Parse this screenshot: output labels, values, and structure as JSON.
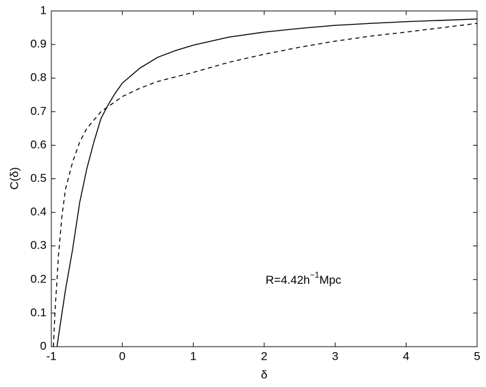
{
  "chart_data": {
    "type": "line",
    "x_label": "δ",
    "y_label": "C(δ)",
    "annotation": [
      "R=4.42h",
      "−1",
      "Mpc"
    ],
    "xlim": [
      -1,
      5
    ],
    "ylim": [
      0,
      1
    ],
    "xticks": [
      -1,
      0,
      1,
      2,
      3,
      4,
      5
    ],
    "yticks": [
      0,
      0.1,
      0.2,
      0.3,
      0.4,
      0.5,
      0.6,
      0.7,
      0.8,
      0.9,
      1
    ],
    "grid": false,
    "series": [
      {
        "color": "#000000",
        "dash": "solid",
        "x": [
          -0.92,
          -0.9,
          -0.85,
          -0.8,
          -0.75,
          -0.7,
          -0.6,
          -0.5,
          -0.4,
          -0.3,
          -0.2,
          -0.1,
          0,
          0.25,
          0.5,
          0.75,
          1,
          1.5,
          2,
          2.5,
          3,
          3.5,
          4,
          4.5,
          5
        ],
        "values": [
          0,
          0.03,
          0.1,
          0.17,
          0.23,
          0.29,
          0.43,
          0.53,
          0.61,
          0.68,
          0.72,
          0.755,
          0.785,
          0.83,
          0.862,
          0.882,
          0.898,
          0.922,
          0.937,
          0.948,
          0.957,
          0.963,
          0.968,
          0.972,
          0.976
        ]
      },
      {
        "color": "#000000",
        "dash": "dashed",
        "x": [
          -0.97,
          -0.95,
          -0.92,
          -0.9,
          -0.85,
          -0.8,
          -0.7,
          -0.6,
          -0.5,
          -0.4,
          -0.3,
          -0.2,
          -0.1,
          0,
          0.25,
          0.5,
          1,
          1.5,
          2,
          2.5,
          3,
          3.5,
          4,
          4.5,
          5
        ],
        "values": [
          0,
          0.1,
          0.2,
          0.27,
          0.39,
          0.47,
          0.55,
          0.61,
          0.65,
          0.675,
          0.7,
          0.715,
          0.73,
          0.745,
          0.77,
          0.79,
          0.817,
          0.847,
          0.871,
          0.892,
          0.91,
          0.925,
          0.937,
          0.95,
          0.963
        ]
      }
    ]
  }
}
